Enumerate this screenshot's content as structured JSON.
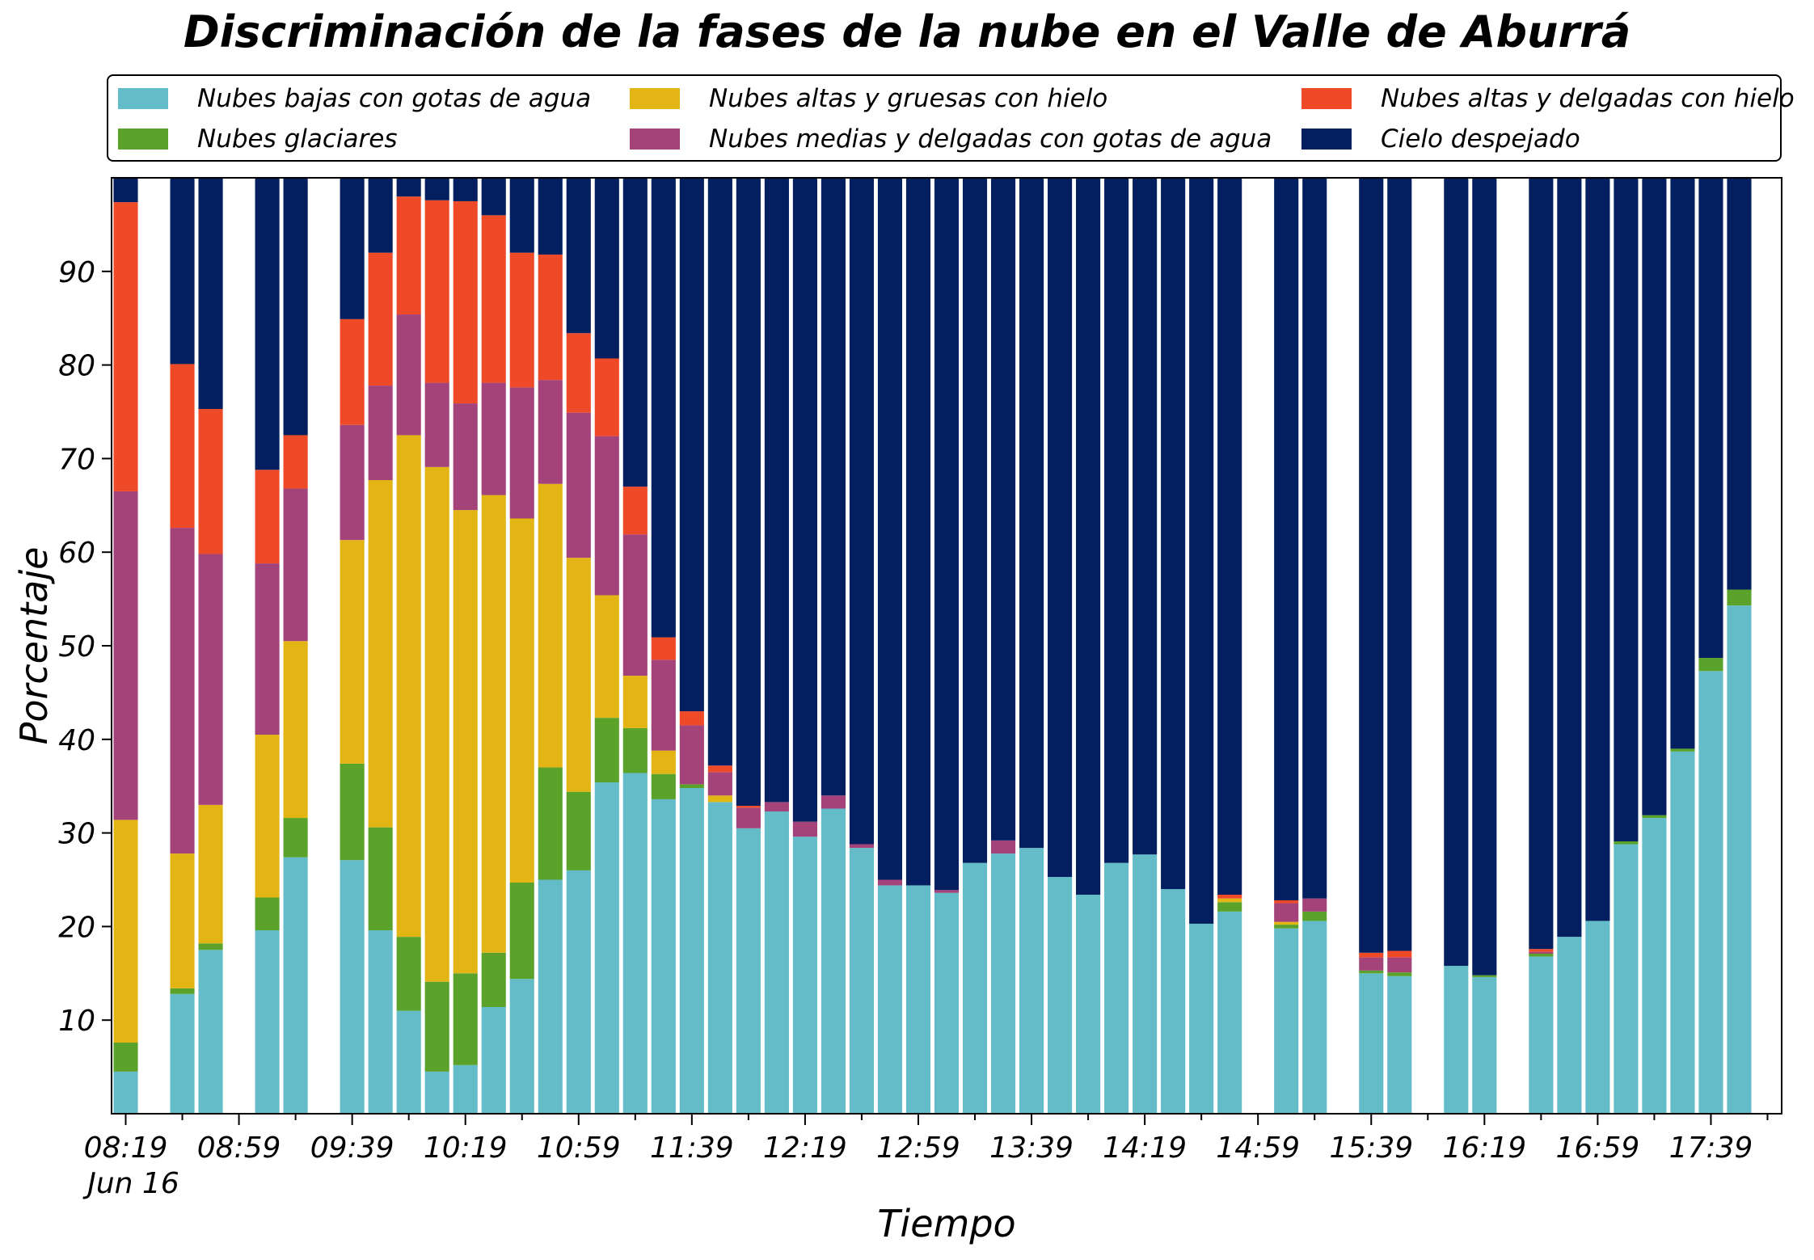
{
  "chart_data": {
    "type": "bar",
    "stacked": true,
    "title": "Discriminación de la fases de la nube en el Valle de Aburrá",
    "xlabel": "Tiempo",
    "ylabel": "Porcentaje",
    "ylim": [
      0,
      100
    ],
    "yticks": [
      10,
      20,
      30,
      40,
      50,
      60,
      70,
      80,
      90
    ],
    "xlim": [
      -0.5,
      58.5
    ],
    "xticks": [
      {
        "pos": 0,
        "label": "08:19"
      },
      {
        "pos": 4,
        "label": "08:59"
      },
      {
        "pos": 8,
        "label": "09:39"
      },
      {
        "pos": 12,
        "label": "10:19"
      },
      {
        "pos": 16,
        "label": "10:59"
      },
      {
        "pos": 20,
        "label": "11:39"
      },
      {
        "pos": 24,
        "label": "12:19"
      },
      {
        "pos": 28,
        "label": "12:59"
      },
      {
        "pos": 32,
        "label": "13:39"
      },
      {
        "pos": 36,
        "label": "14:19"
      },
      {
        "pos": 40,
        "label": "14:59"
      },
      {
        "pos": 44,
        "label": "15:39"
      },
      {
        "pos": 48,
        "label": "16:19"
      },
      {
        "pos": 52,
        "label": "16:59"
      },
      {
        "pos": 56,
        "label": "17:39"
      }
    ],
    "x_sublabel": "Jun 16",
    "grid": false,
    "legend_position": "top",
    "categories": [
      "08:19",
      "08:29",
      "08:39",
      "08:49",
      "08:59",
      "09:09",
      "09:19",
      "09:29",
      "09:39",
      "09:49",
      "09:59",
      "10:09",
      "10:19",
      "10:29",
      "10:39",
      "10:49",
      "10:59",
      "11:09",
      "11:19",
      "11:29",
      "11:39",
      "11:49",
      "11:59",
      "12:09",
      "12:19",
      "12:29",
      "12:39",
      "12:49",
      "12:59",
      "13:09",
      "13:19",
      "13:29",
      "13:39",
      "13:49",
      "13:59",
      "14:09",
      "14:19",
      "14:29",
      "14:39",
      "14:49",
      "14:59",
      "15:09",
      "15:19",
      "15:29",
      "15:39",
      "15:49",
      "15:59",
      "16:09",
      "16:19",
      "16:29",
      "16:39",
      "16:49",
      "16:59",
      "17:09",
      "17:19",
      "17:29",
      "17:39",
      "17:49",
      "17:59"
    ],
    "series": [
      {
        "name": "Nubes bajas con gotas de agua",
        "color": "#63bcc8",
        "values": [
          4.5,
          0,
          12.8,
          17.5,
          0,
          19.6,
          27.4,
          0,
          27.1,
          19.6,
          11.0,
          4.5,
          5.2,
          11.4,
          14.4,
          25.0,
          26.0,
          35.4,
          36.4,
          33.6,
          34.8,
          33.3,
          30.5,
          32.3,
          29.6,
          32.6,
          28.4,
          24.4,
          24.4,
          23.6,
          26.8,
          27.8,
          28.4,
          25.3,
          23.4,
          26.8,
          27.7,
          24.0,
          20.3,
          21.6,
          0,
          19.8,
          20.6,
          0,
          15.0,
          14.7,
          0,
          15.8,
          14.6,
          0,
          16.8,
          18.9,
          20.6,
          28.8,
          31.6,
          38.7,
          47.3,
          54.3,
          0
        ]
      },
      {
        "name": "Nubes glaciares",
        "color": "#5ba22b",
        "values": [
          3.1,
          0,
          0.6,
          0.7,
          0,
          3.5,
          4.2,
          0,
          10.3,
          11.0,
          7.9,
          9.6,
          9.8,
          5.8,
          10.3,
          12.0,
          8.4,
          6.9,
          4.8,
          2.7,
          0.4,
          0,
          0,
          0,
          0,
          0,
          0,
          0,
          0,
          0,
          0,
          0,
          0,
          0,
          0,
          0,
          0,
          0,
          0,
          1.0,
          0,
          0.4,
          1.0,
          0,
          0.3,
          0.4,
          0,
          0,
          0.2,
          0,
          0.3,
          0,
          0,
          0.3,
          0.3,
          0.3,
          1.4,
          1.7,
          0
        ]
      },
      {
        "name": "Nubes altas y gruesas con hielo",
        "color": "#e2b514",
        "values": [
          23.8,
          0,
          14.4,
          14.8,
          0,
          17.4,
          18.9,
          0,
          23.9,
          37.1,
          53.6,
          55.0,
          49.5,
          48.9,
          38.9,
          30.3,
          25.0,
          13.1,
          5.6,
          2.5,
          0,
          0.7,
          0,
          0,
          0,
          0,
          0,
          0,
          0,
          0,
          0,
          0,
          0,
          0,
          0,
          0,
          0,
          0,
          0,
          0.4,
          0,
          0.3,
          0,
          0,
          0,
          0,
          0,
          0,
          0,
          0,
          0,
          0,
          0,
          0,
          0,
          0,
          0,
          0,
          0
        ]
      },
      {
        "name": "Nubes medias y delgadas con gotas de agua",
        "color": "#a4427a",
        "values": [
          35.1,
          0,
          34.8,
          26.8,
          0,
          18.3,
          16.3,
          0,
          12.3,
          10.1,
          12.9,
          9.0,
          11.4,
          12.0,
          14.0,
          11.1,
          15.5,
          17.0,
          15.1,
          9.7,
          6.3,
          2.5,
          2.2,
          1.0,
          1.6,
          1.4,
          0.4,
          0.6,
          0,
          0.3,
          0,
          1.4,
          0,
          0,
          0,
          0,
          0,
          0,
          0,
          0,
          0,
          2.0,
          1.4,
          0,
          1.4,
          1.6,
          0,
          0,
          0,
          0,
          0.2,
          0,
          0,
          0,
          0,
          0,
          0,
          0,
          0
        ]
      },
      {
        "name": "Nubes altas y delgadas con hielo",
        "color": "#ef4a28",
        "values": [
          30.9,
          0,
          17.5,
          15.5,
          0,
          10.0,
          5.7,
          0,
          11.3,
          14.2,
          12.6,
          19.5,
          21.6,
          17.9,
          14.4,
          13.4,
          8.5,
          8.3,
          5.1,
          2.4,
          1.5,
          0.7,
          0.2,
          0,
          0,
          0,
          0,
          0,
          0,
          0,
          0,
          0,
          0,
          0,
          0,
          0,
          0,
          0,
          0,
          0.4,
          0,
          0.3,
          0,
          0,
          0.5,
          0.7,
          0,
          0,
          0,
          0,
          0.3,
          0,
          0,
          0,
          0,
          0,
          0,
          0,
          0
        ]
      },
      {
        "name": "Cielo despejado",
        "color": "#031f5f",
        "values": [
          2.6,
          0,
          19.9,
          24.7,
          0,
          31.2,
          27.5,
          0,
          15.1,
          8.0,
          2.0,
          2.4,
          2.5,
          4.0,
          8.0,
          8.2,
          16.6,
          19.3,
          33.0,
          49.1,
          57.0,
          62.8,
          67.1,
          66.7,
          68.8,
          66.0,
          71.2,
          75.0,
          75.6,
          76.1,
          73.2,
          70.8,
          71.6,
          74.7,
          76.6,
          73.2,
          72.3,
          76.0,
          79.7,
          76.6,
          0,
          77.2,
          77.0,
          0,
          82.8,
          82.6,
          0,
          84.2,
          85.2,
          0,
          82.4,
          81.1,
          79.4,
          70.9,
          68.1,
          61.0,
          51.3,
          44.0,
          0
        ]
      }
    ]
  }
}
